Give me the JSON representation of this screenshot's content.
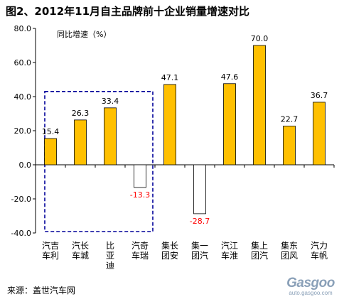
{
  "title": "图2、2012年11月自主品牌前十企业销量增速对比",
  "source_note": "来源：盖世汽车网",
  "watermark": {
    "main": "Gasgoo",
    "url": "auto.gasgoo.com"
  },
  "colors": {
    "bar_fill": "#FFC000",
    "bar_stroke": "#000000",
    "negative_label": "#FF0000",
    "highlight_box": "#000099"
  },
  "chart_data": {
    "type": "bar",
    "title": "图2、2012年11月自主品牌前十企业销量增速对比",
    "ylabel": "同比增速（%）",
    "xlabel": "",
    "categories": [
      "吉利汽车",
      "长城汽车",
      "比亚迪",
      "奇瑞汽车",
      "长安集团",
      "一汽集团",
      "江淮汽车",
      "上汽集团",
      "东风集团",
      "力帆汽车"
    ],
    "values": [
      15.4,
      26.3,
      33.4,
      -13.3,
      47.1,
      -28.7,
      47.6,
      70.0,
      22.7,
      36.7
    ],
    "data_labels": [
      "15.4",
      "26.3",
      "33.4",
      "-13.3",
      "47.1",
      "-28.7",
      "47.6",
      "70.0",
      "22.7",
      "36.7"
    ],
    "ylim": [
      -40,
      80
    ],
    "yticks": [
      "80.0",
      "60.0",
      "40.0",
      "20.0",
      "0.0",
      "-20.0",
      "-40.0"
    ],
    "grid": false,
    "annotations": [
      {
        "type": "dashed-box",
        "covers": [
          "吉利汽车",
          "长城汽车",
          "比亚迪",
          "奇瑞汽车"
        ]
      }
    ]
  }
}
